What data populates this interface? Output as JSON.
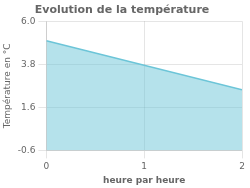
{
  "chart_data": {
    "type": "area",
    "title": "Evolution de la température",
    "xlabel": "heure par heure",
    "ylabel": "Température en °C",
    "x": [
      0,
      2
    ],
    "values": [
      5.0,
      2.5
    ],
    "color": "#6cc5d8",
    "xlim": [
      0,
      2
    ],
    "ylim": [
      -0.6,
      6.0
    ],
    "xticks": [
      0,
      1,
      2
    ],
    "yticks": [
      -0.6,
      1.6,
      3.8,
      {
        "value": 6.0,
        "label": "6.0"
      }
    ],
    "grid": true
  }
}
